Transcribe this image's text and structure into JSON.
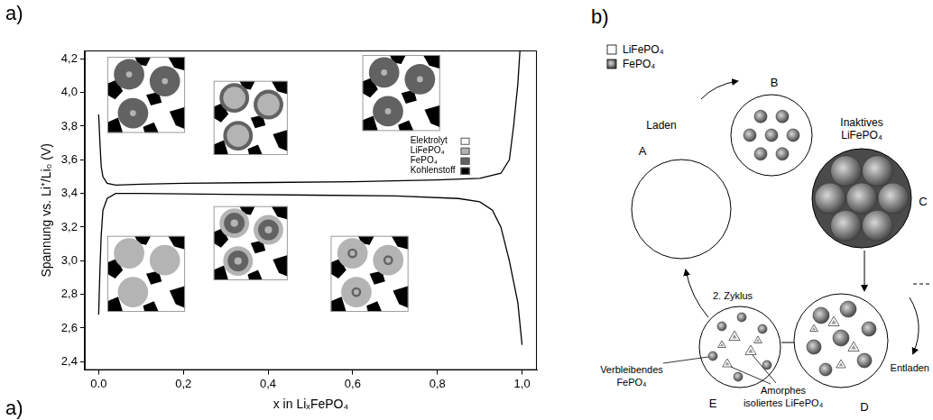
{
  "panel_labels": [
    "a)",
    "b)",
    "a)"
  ],
  "chart_data": {
    "type": "line",
    "xlabel": "x in LiₓFePO₄",
    "ylabel": "Spannung vs. Li⁺/Li₀ (V)",
    "xlim": [
      -0.033,
      1.035
    ],
    "ylim": [
      2.35,
      4.25
    ],
    "xticks": [
      {
        "value": 0,
        "label": "0.0"
      },
      {
        "value": 0.2,
        "label": "0,2"
      },
      {
        "value": 0.4,
        "label": "0,4"
      },
      {
        "value": 0.6,
        "label": "0,6"
      },
      {
        "value": 0.8,
        "label": "0,8"
      },
      {
        "value": 1,
        "label": "1,0"
      }
    ],
    "yticks": [
      {
        "value": 2.4,
        "label": "2,4"
      },
      {
        "value": 2.6,
        "label": "2,6"
      },
      {
        "value": 2.8,
        "label": "2,8"
      },
      {
        "value": 3.0,
        "label": "3,0"
      },
      {
        "value": 3.2,
        "label": "3,2"
      },
      {
        "value": 3.4,
        "label": "3,4"
      },
      {
        "value": 3.6,
        "label": "3,6"
      },
      {
        "value": 3.8,
        "label": "3,8"
      },
      {
        "value": 4.0,
        "label": "4,0"
      },
      {
        "value": 4.2,
        "label": "4,2"
      }
    ],
    "grid": false,
    "series": [
      {
        "color": "#000000",
        "x": [
          0,
          0.003,
          0.006,
          0.01,
          0.02,
          0.04,
          0.1,
          0.2,
          0.4,
          0.6,
          0.8,
          0.9,
          0.95,
          0.97,
          0.98,
          0.99,
          0.995
        ],
        "values": [
          3.87,
          3.7,
          3.56,
          3.5,
          3.46,
          3.45,
          3.455,
          3.46,
          3.465,
          3.47,
          3.48,
          3.49,
          3.52,
          3.6,
          3.8,
          4.05,
          4.25
        ]
      },
      {
        "color": "#000000",
        "x": [
          0,
          0.003,
          0.006,
          0.01,
          0.02,
          0.04,
          0.1,
          0.3,
          0.5,
          0.7,
          0.85,
          0.9,
          0.93,
          0.95,
          0.97,
          0.99,
          1.0
        ],
        "values": [
          2.68,
          2.95,
          3.15,
          3.3,
          3.37,
          3.4,
          3.4,
          3.395,
          3.39,
          3.385,
          3.37,
          3.35,
          3.3,
          3.2,
          3.0,
          2.75,
          2.5
        ]
      }
    ]
  },
  "inset_legend": [
    {
      "label": "Elektrolyt",
      "color": "#ffffff"
    },
    {
      "label": "LiFePO₄",
      "color": "#b4b4b4"
    },
    {
      "label": "FePO₄",
      "color": "#626262"
    },
    {
      "label": "Kohlenstoff",
      "color": "#000000"
    }
  ],
  "diagram": {
    "legend": [
      {
        "label": "LiFePO₄",
        "color": "#ffffff"
      },
      {
        "label": "FePO₄",
        "color": "#4a4a4a"
      }
    ],
    "nodes": [
      {
        "label": "A"
      },
      {
        "label": "B"
      },
      {
        "label": "C"
      },
      {
        "label": "D"
      },
      {
        "label": "E"
      }
    ],
    "annotations": {
      "charge": "Laden",
      "discharge": "Entladen",
      "cycle": "2. Zyklus",
      "inactive": "Inaktives LiFePO₄",
      "remaining": "Verbleibendes FePO₄",
      "amorphous": "Amorphes isoliertes LiFePO₄"
    }
  }
}
